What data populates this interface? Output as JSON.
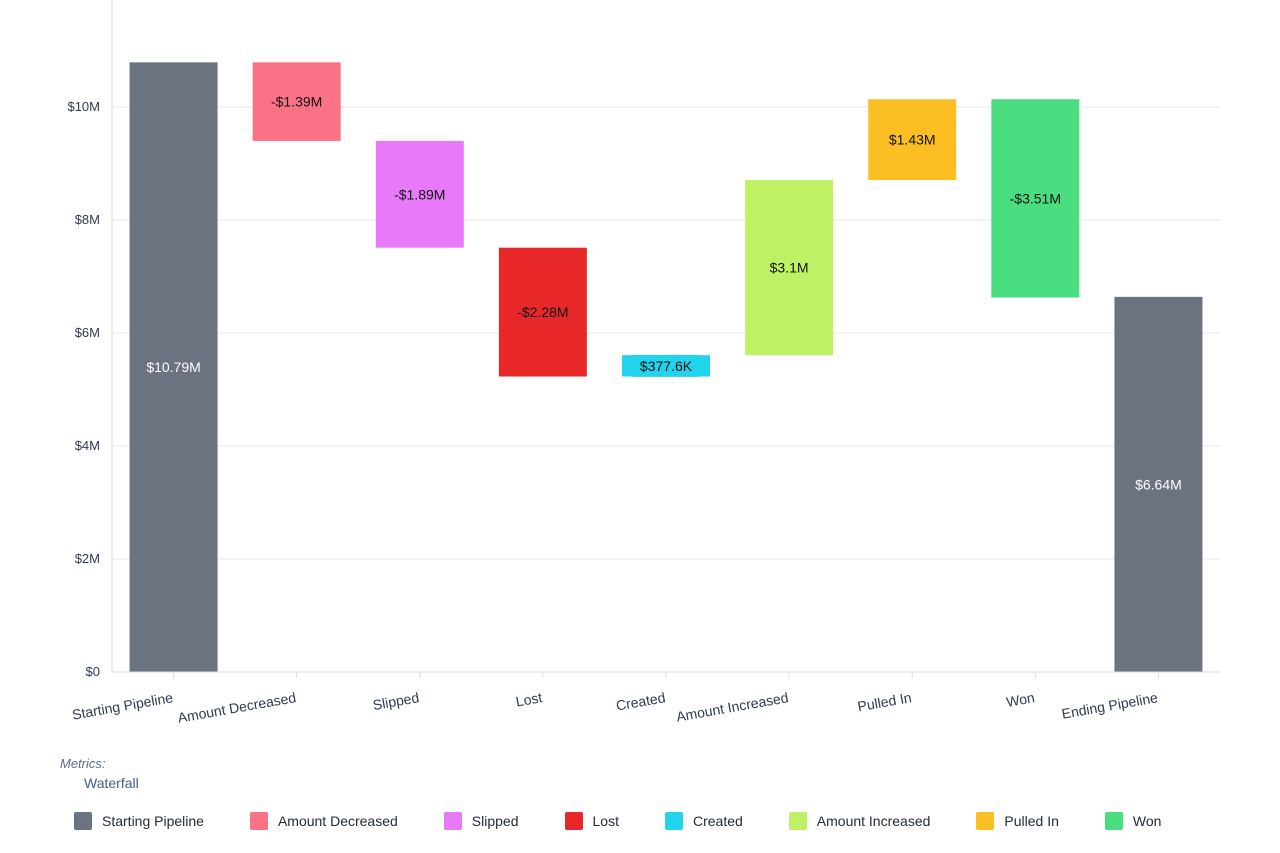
{
  "chart_data": {
    "type": "waterfall",
    "title": "",
    "xlabel": "",
    "ylabel": "",
    "ylim": [
      0,
      12000000
    ],
    "y_ticks": [
      {
        "value": 0,
        "label": "$0"
      },
      {
        "value": 2000000,
        "label": "$2M"
      },
      {
        "value": 4000000,
        "label": "$4M"
      },
      {
        "value": 6000000,
        "label": "$6M"
      },
      {
        "value": 8000000,
        "label": "$8M"
      },
      {
        "value": 10000000,
        "label": "$10M"
      }
    ],
    "grid": true,
    "bars": [
      {
        "category": "Starting Pipeline",
        "start": 0,
        "end": 10790000,
        "label": "$10.79M",
        "color": "#6b7280",
        "label_color": "#ffffff"
      },
      {
        "category": "Amount Decreased",
        "start": 10790000,
        "end": 9400000,
        "label": "-$1.39M",
        "color": "#fb7185",
        "label_color": "#111111"
      },
      {
        "category": "Slipped",
        "start": 9400000,
        "end": 7510000,
        "label": "-$1.89M",
        "color": "#e879f9",
        "label_color": "#111111"
      },
      {
        "category": "Lost",
        "start": 7510000,
        "end": 5230000,
        "label": "-$2.28M",
        "color": "#e82828",
        "label_color": "#111111"
      },
      {
        "category": "Created",
        "start": 5230000,
        "end": 5607600,
        "label": "$377.6K",
        "color": "#22d3ee",
        "label_color": "#111111"
      },
      {
        "category": "Amount Increased",
        "start": 5607600,
        "end": 8707600,
        "label": "$3.1M",
        "color": "#bef264",
        "label_color": "#111111"
      },
      {
        "category": "Pulled In",
        "start": 8707600,
        "end": 10137600,
        "label": "$1.43M",
        "color": "#fbbf24",
        "label_color": "#111111"
      },
      {
        "category": "Won",
        "start": 10137600,
        "end": 6627600,
        "label": "-$3.51M",
        "color": "#4ade80",
        "label_color": "#111111"
      },
      {
        "category": "Ending Pipeline",
        "start": 0,
        "end": 6640000,
        "label": "$6.64M",
        "color": "#6b7280",
        "label_color": "#ffffff"
      }
    ],
    "legend_placement": "bottom"
  },
  "legend": {
    "title": "Metrics:",
    "group": "Waterfall",
    "items": [
      {
        "label": "Starting Pipeline",
        "color": "#6b7280"
      },
      {
        "label": "Amount Decreased",
        "color": "#fb7185"
      },
      {
        "label": "Slipped",
        "color": "#e879f9"
      },
      {
        "label": "Lost",
        "color": "#e82828"
      },
      {
        "label": "Created",
        "color": "#22d3ee"
      },
      {
        "label": "Amount Increased",
        "color": "#bef264"
      },
      {
        "label": "Pulled In",
        "color": "#fbbf24"
      },
      {
        "label": "Won",
        "color": "#4ade80"
      }
    ]
  }
}
